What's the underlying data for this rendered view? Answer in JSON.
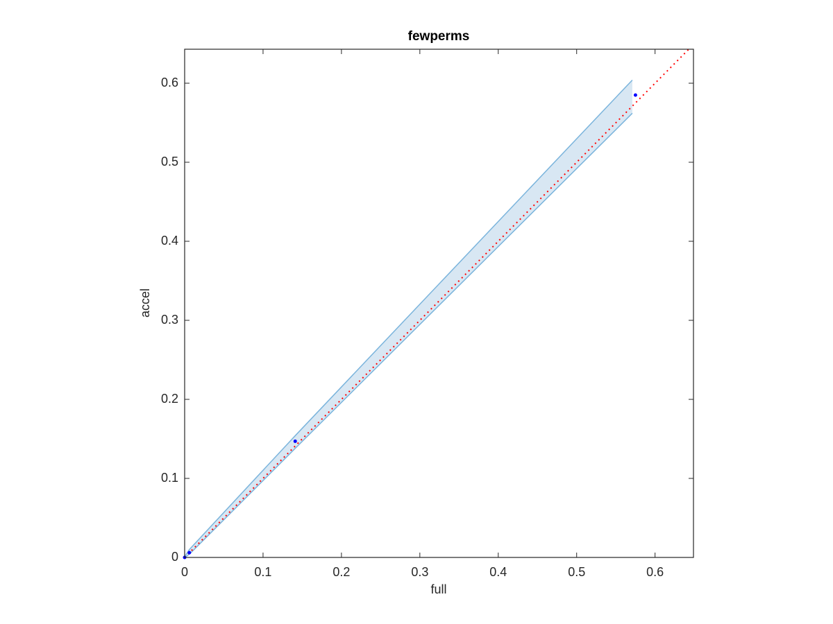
{
  "chart_data": {
    "type": "scatter",
    "title": "fewperms",
    "x_label": "full",
    "y_label": "accel",
    "xlim": [
      0,
      0.649
    ],
    "ylim": [
      0,
      0.643
    ],
    "xticks": [
      0,
      0.1,
      0.2,
      0.3,
      0.4,
      0.5,
      0.6
    ],
    "yticks": [
      0,
      0.1,
      0.2,
      0.3,
      0.4,
      0.5,
      0.6
    ],
    "points": {
      "color": "#0000ff",
      "x": [
        0,
        0.006,
        0.141,
        0.575
      ],
      "values": [
        0,
        0.006,
        0.147,
        0.585
      ]
    },
    "band": {
      "color": "#7ab4dc",
      "fill": "#d8e7f3",
      "x": [
        0,
        0.006,
        0.141,
        0.571
      ],
      "upper": [
        0.001,
        0.01,
        0.154,
        0.604
      ],
      "lower": [
        0,
        0.004,
        0.138,
        0.562
      ]
    },
    "reference": {
      "color": "#ff0000",
      "x": [
        0,
        0.643
      ],
      "values": [
        0,
        0.643
      ]
    }
  }
}
